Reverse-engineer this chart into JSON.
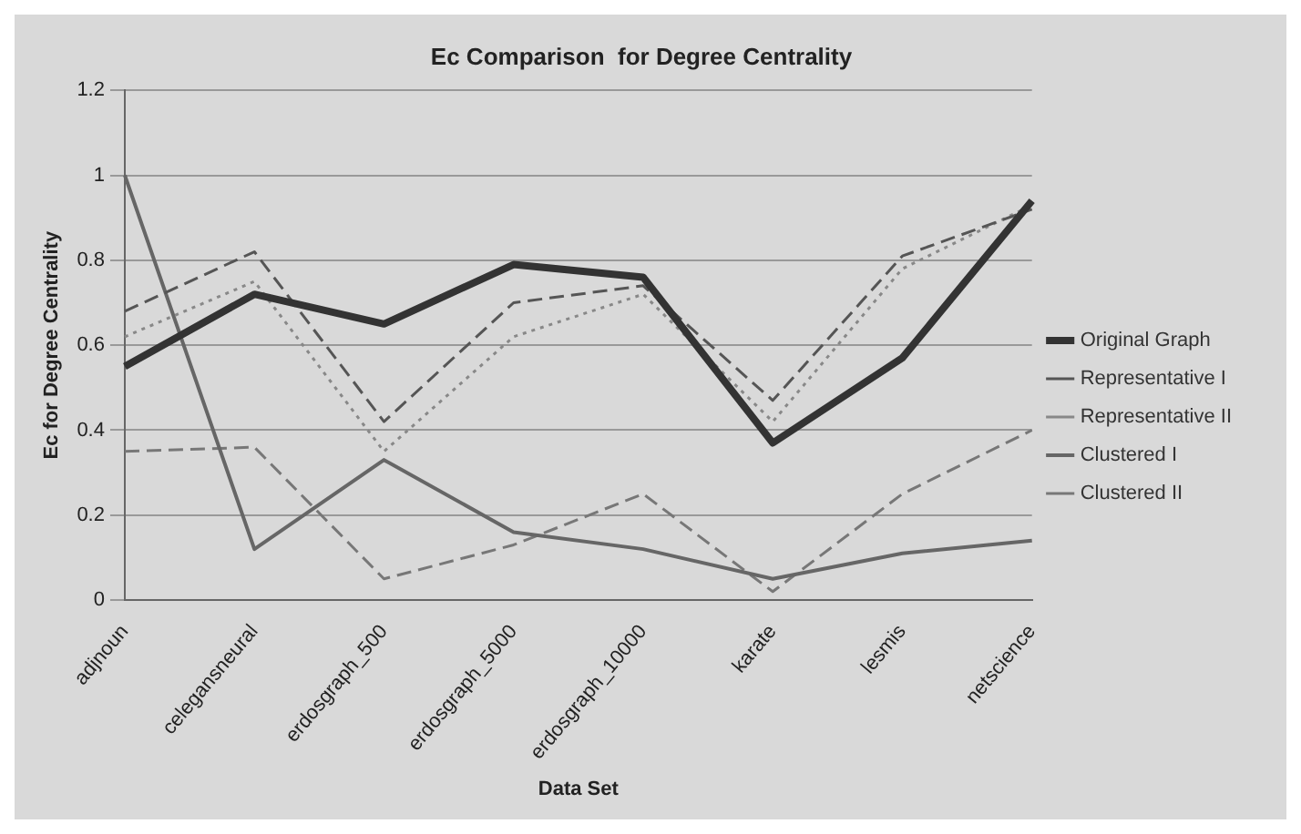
{
  "chart_data": {
    "type": "line",
    "title": "Ec Comparison  for Degree Centrality",
    "xlabel": "Data Set",
    "ylabel": "Ec for Degree Centrality",
    "categories": [
      "adjnoun",
      "celegansneural",
      "erdosgraph_500",
      "erdosgraph_5000",
      "erdosgraph_10000",
      "karate",
      "lesmis",
      "netscience"
    ],
    "ylim": [
      0,
      1.2
    ],
    "yticks": [
      0,
      0.2,
      0.4,
      0.6,
      0.8,
      1,
      1.2
    ],
    "grid": "y",
    "legend": "right",
    "marker": "none",
    "series": [
      {
        "name": "Original Graph",
        "color": "#333333",
        "line_style": "solid",
        "values": [
          0.55,
          0.72,
          0.65,
          0.79,
          0.76,
          0.37,
          0.57,
          0.94
        ]
      },
      {
        "name": "Representative I",
        "color": "#555555",
        "line_style": "dashed",
        "values": [
          0.68,
          0.82,
          0.42,
          0.7,
          0.74,
          0.47,
          0.81,
          0.92
        ]
      },
      {
        "name": "Representative II",
        "color": "#888888",
        "line_style": "dotted",
        "values": [
          0.62,
          0.75,
          0.35,
          0.62,
          0.72,
          0.42,
          0.78,
          0.93
        ]
      },
      {
        "name": "Clustered I",
        "color": "#666666",
        "line_style": "solid",
        "values": [
          1,
          0.12,
          0.33,
          0.16,
          0.12,
          0.05,
          0.11,
          0.14
        ]
      },
      {
        "name": "Clustered II",
        "color": "#777777",
        "line_style": "dashed",
        "values": [
          0.35,
          0.36,
          0.05,
          0.13,
          0.25,
          0.02,
          0.25,
          0.4
        ]
      }
    ]
  }
}
